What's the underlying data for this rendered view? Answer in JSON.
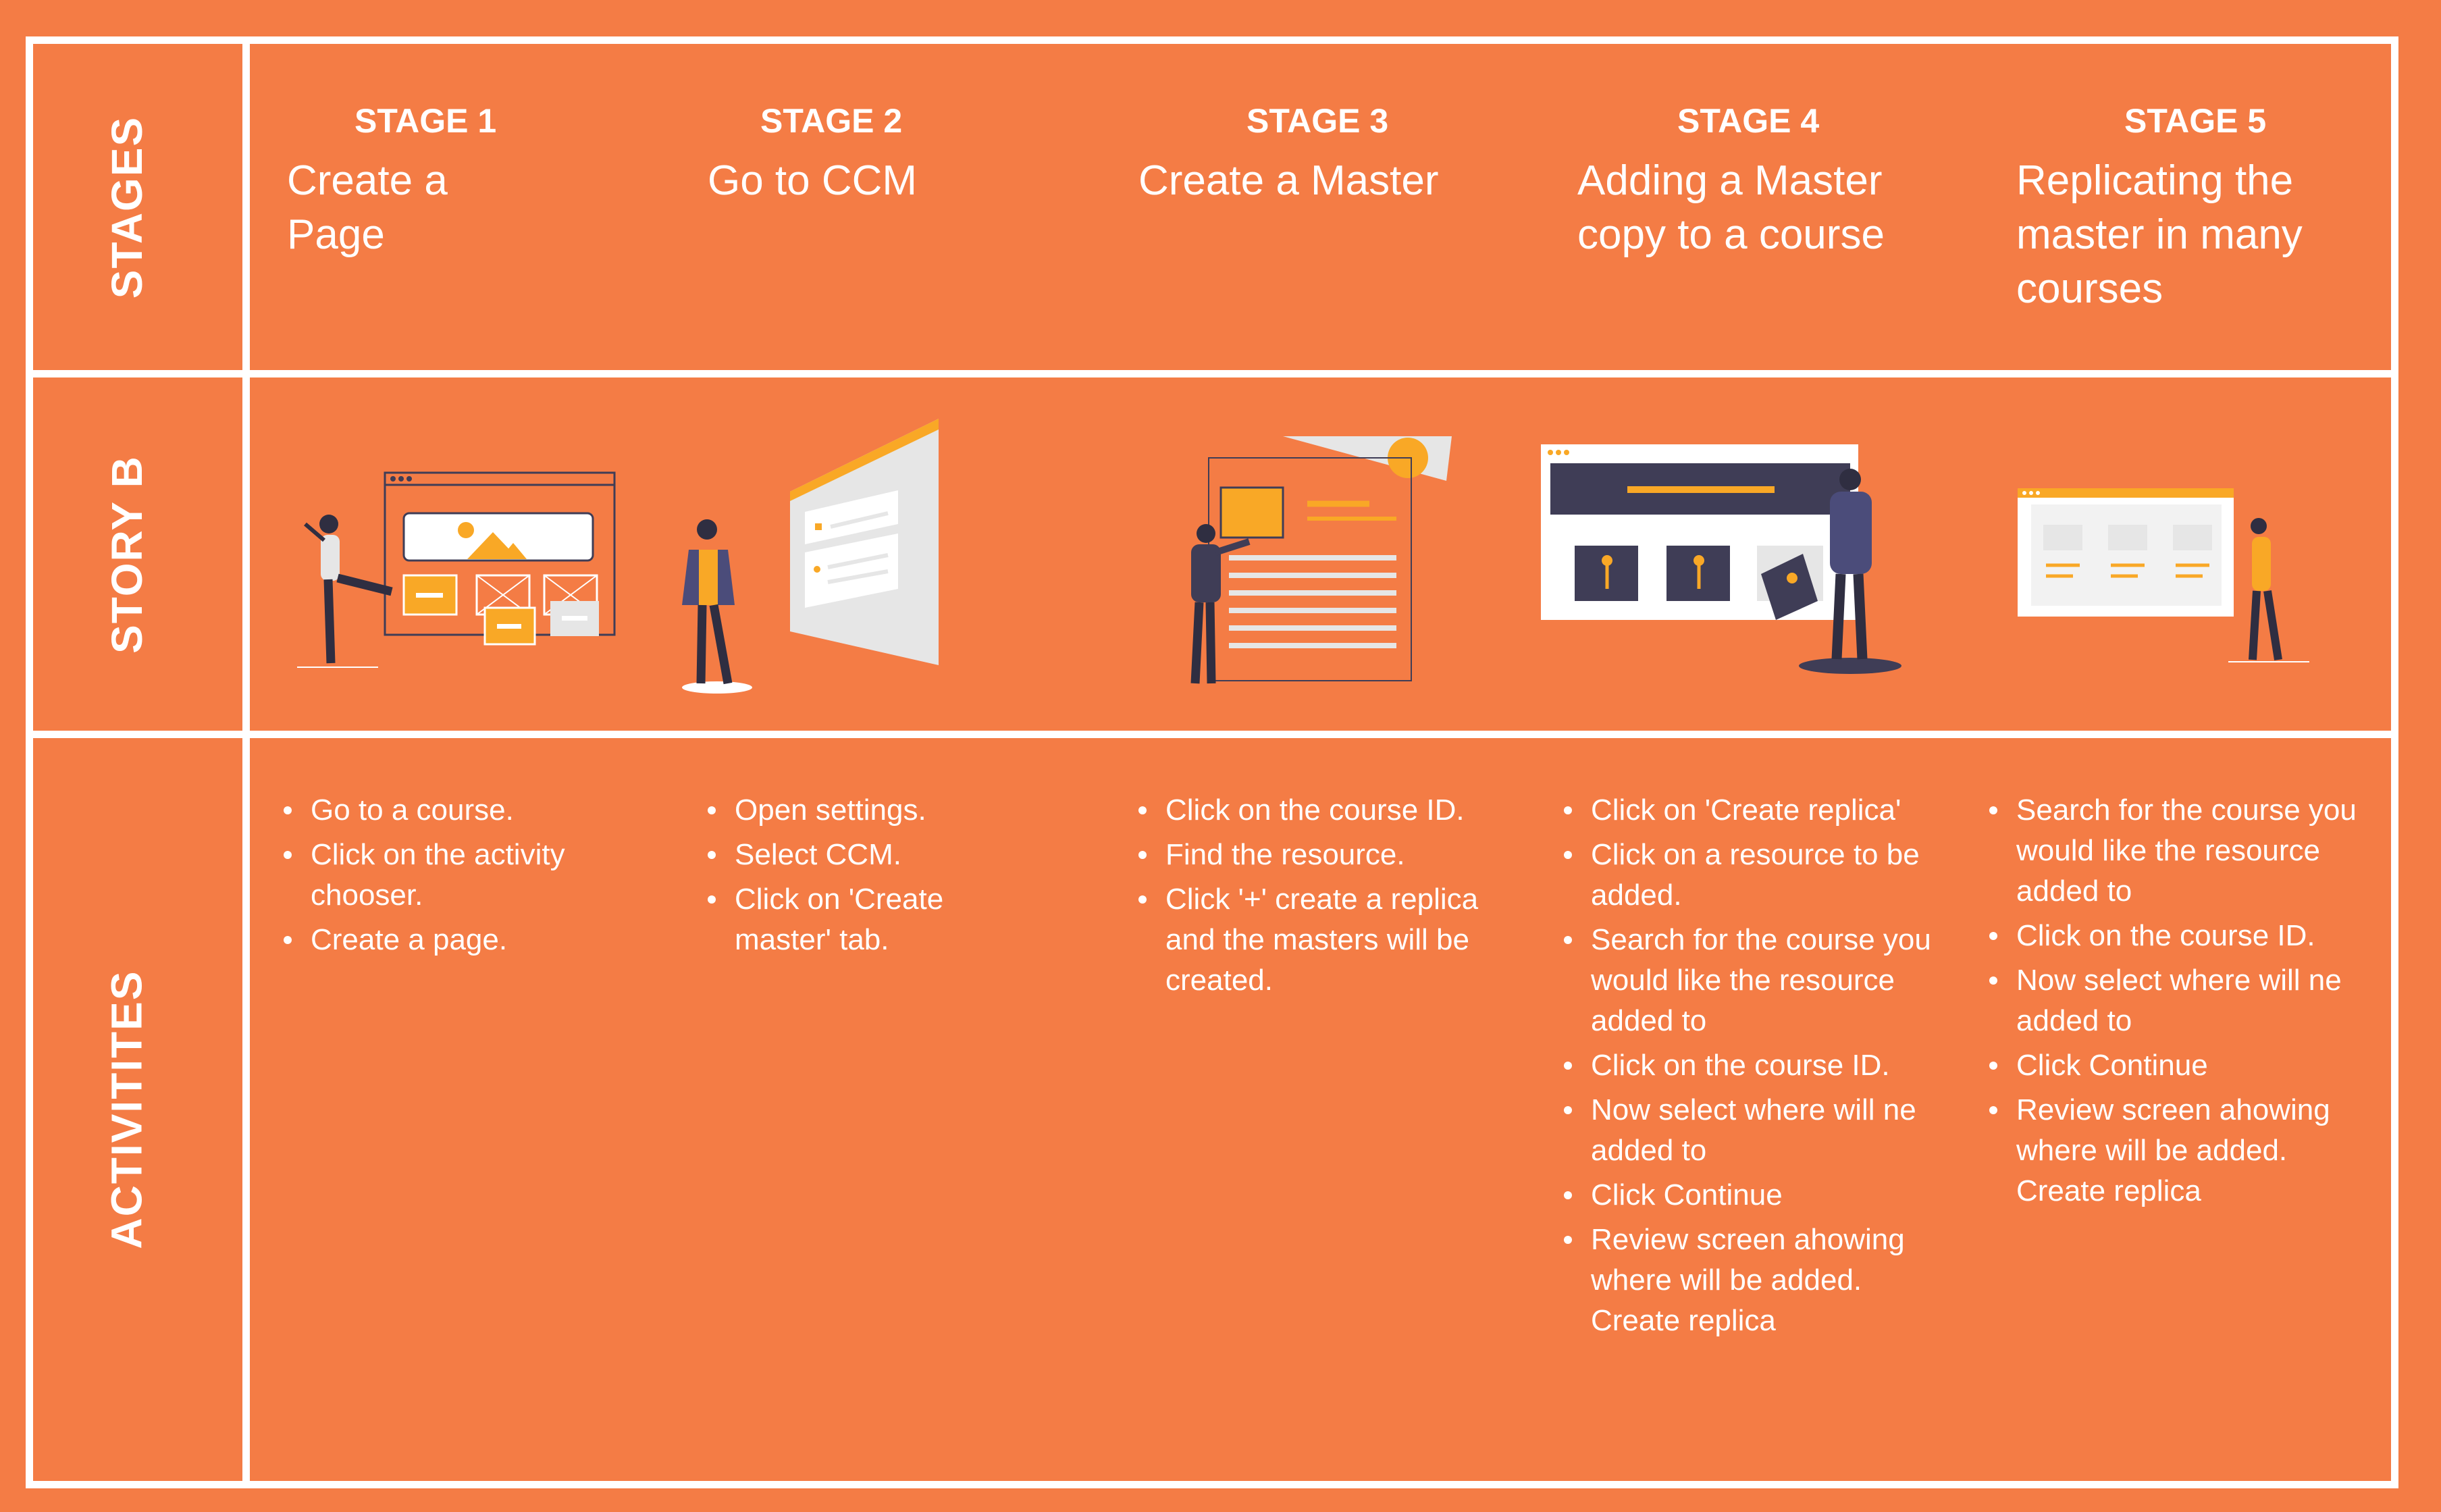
{
  "rows": {
    "stages": "STAGES",
    "story": "STORY B",
    "activities": "ACTIVITITES"
  },
  "stages": [
    {
      "num": "STAGE 1",
      "title": "Create a Page"
    },
    {
      "num": "STAGE 2",
      "title": "Go to CCM"
    },
    {
      "num": "STAGE 3",
      "title": "Create a Master"
    },
    {
      "num": "STAGE 4",
      "title": "Adding a Master copy to a course"
    },
    {
      "num": "STAGE 5",
      "title": "Replicating the master in many courses"
    }
  ],
  "activities": [
    [
      "Go to a course.",
      "Click on the activity chooser.",
      "Create a page."
    ],
    [
      "Open settings.",
      "Select CCM.",
      "Click on 'Create master' tab."
    ],
    [
      "Click on the course  ID.",
      "Find the resource.",
      "Click '+' create a replica and  the masters will be created."
    ],
    [
      "Click on 'Create replica'",
      "Click on a resource to be added.",
      "Search for the course you would like the resource added to",
      "Click on the course  ID.",
      "Now select where will ne added to",
      "Click Continue",
      "Review screen ahowing where will be added. Create replica"
    ],
    [
      "Search for the course you would like the resource added to",
      "Click on the course  ID.",
      "Now select where will ne added to",
      "Click Continue",
      "Review screen ahowing where will be added. Create replica"
    ]
  ],
  "illustrations": [
    {
      "icon": "person-building-page-illustration"
    },
    {
      "icon": "person-settings-panel-illustration"
    },
    {
      "icon": "person-creating-master-illustration"
    },
    {
      "icon": "person-adding-master-copy-illustration"
    },
    {
      "icon": "person-replicating-master-illustration"
    }
  ],
  "colors": {
    "background": "#F47C45",
    "lines": "#FFFFFF",
    "accent": "#F9A826",
    "dark": "#3F3D56"
  }
}
